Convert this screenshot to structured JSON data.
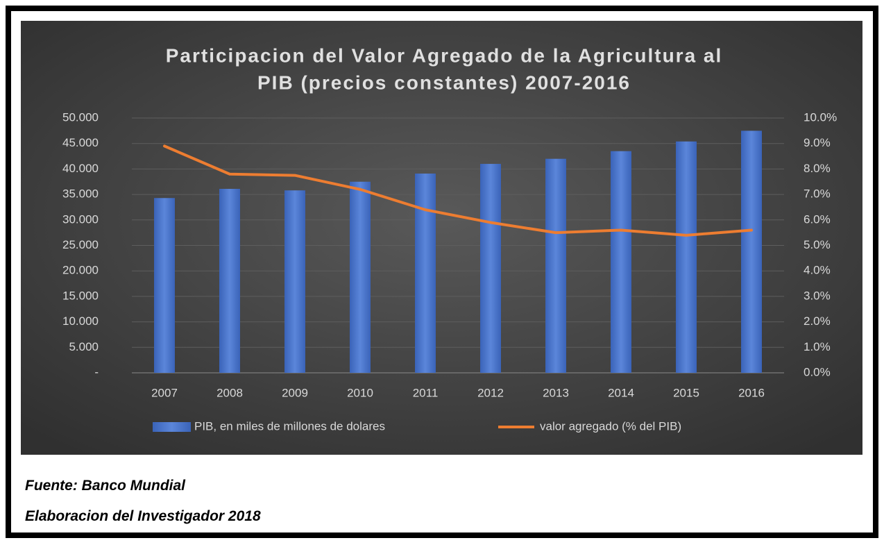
{
  "chart_data": {
    "type": "bar",
    "title": [
      "Participacion del Valor Agregado de la  Agricultura al",
      "PIB (precios constantes) 2007-2016"
    ],
    "categories": [
      "2007",
      "2008",
      "2009",
      "2010",
      "2011",
      "2012",
      "2013",
      "2014",
      "2015",
      "2016"
    ],
    "series": [
      {
        "name": "PIB, en miles de millones de dolares",
        "type": "bar",
        "color": "#4a74c9",
        "values": [
          34300,
          36100,
          35800,
          37500,
          39100,
          41000,
          42000,
          43500,
          45400,
          47500
        ]
      },
      {
        "name": "valor agregado (% del PIB)",
        "type": "line",
        "axis": "y2",
        "color": "#ed7d31",
        "values": [
          8.9,
          7.8,
          7.75,
          7.2,
          6.4,
          5.9,
          5.5,
          5.6,
          5.4,
          5.6
        ]
      }
    ],
    "ylim": [
      0,
      50000
    ],
    "yticks": [
      {
        "value": 0,
        "label": "-"
      },
      {
        "value": 5000,
        "label": "5.000"
      },
      {
        "value": 10000,
        "label": "10.000"
      },
      {
        "value": 15000,
        "label": "15.000"
      },
      {
        "value": 20000,
        "label": "20.000"
      },
      {
        "value": 25000,
        "label": "25.000"
      },
      {
        "value": 30000,
        "label": "30.000"
      },
      {
        "value": 35000,
        "label": "35.000"
      },
      {
        "value": 40000,
        "label": "40.000"
      },
      {
        "value": 45000,
        "label": "45.000"
      },
      {
        "value": 50000,
        "label": "50.000"
      }
    ],
    "y2lim": [
      0,
      10
    ],
    "y2ticks": [
      {
        "value": 0,
        "label": "0.0%"
      },
      {
        "value": 1,
        "label": "1.0%"
      },
      {
        "value": 2,
        "label": "2.0%"
      },
      {
        "value": 3,
        "label": "3.0%"
      },
      {
        "value": 4,
        "label": "4.0%"
      },
      {
        "value": 5,
        "label": "5.0%"
      },
      {
        "value": 6,
        "label": "6.0%"
      },
      {
        "value": 7,
        "label": "7.0%"
      },
      {
        "value": 8,
        "label": "8.0%"
      },
      {
        "value": 9,
        "label": "9.0%"
      },
      {
        "value": 10,
        "label": "10.0%"
      }
    ],
    "grid": true,
    "legend": "bottom"
  },
  "notes": [
    "Fuente: Banco Mundial",
    "Elaboracion del Investigador 2018"
  ]
}
